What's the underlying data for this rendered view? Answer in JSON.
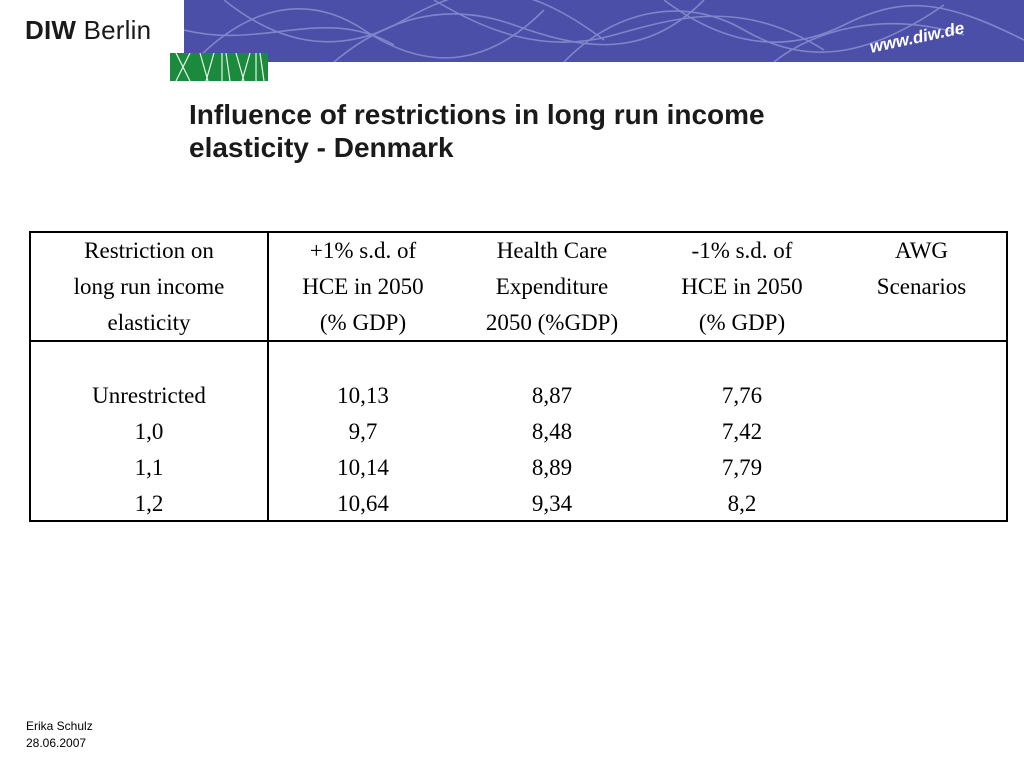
{
  "header": {
    "logo_bold": "DIW",
    "logo_regular": "Berlin",
    "url": "www.diw.de",
    "colors": {
      "banner": "#4b4fa8",
      "green": "#1b8a3d"
    }
  },
  "title": {
    "line1": "Influence of restrictions in long run income",
    "line2": "elasticity - Denmark"
  },
  "table": {
    "headers": [
      [
        "Restriction on",
        "long run income",
        "elasticity"
      ],
      [
        "+1% s.d. of",
        "HCE in 2050",
        "(% GDP)"
      ],
      [
        "Health Care",
        "Expenditure",
        "2050 (%GDP)"
      ],
      [
        "-1% s.d. of",
        "HCE in 2050",
        "(% GDP)"
      ],
      [
        "AWG",
        "Scenarios",
        ""
      ]
    ],
    "columns": [
      [
        "Unrestricted",
        "1,0",
        "1,1",
        "1,2"
      ],
      [
        "10,13",
        "9,7",
        "10,14",
        "10,64"
      ],
      [
        "8,87",
        "8,48",
        "8,89",
        "9,34"
      ],
      [
        "7,76",
        "7,42",
        "7,79",
        "8,2"
      ],
      [
        "",
        "",
        "",
        ""
      ]
    ]
  },
  "footer": {
    "author": "Erika Schulz",
    "date": "28.06.2007"
  }
}
